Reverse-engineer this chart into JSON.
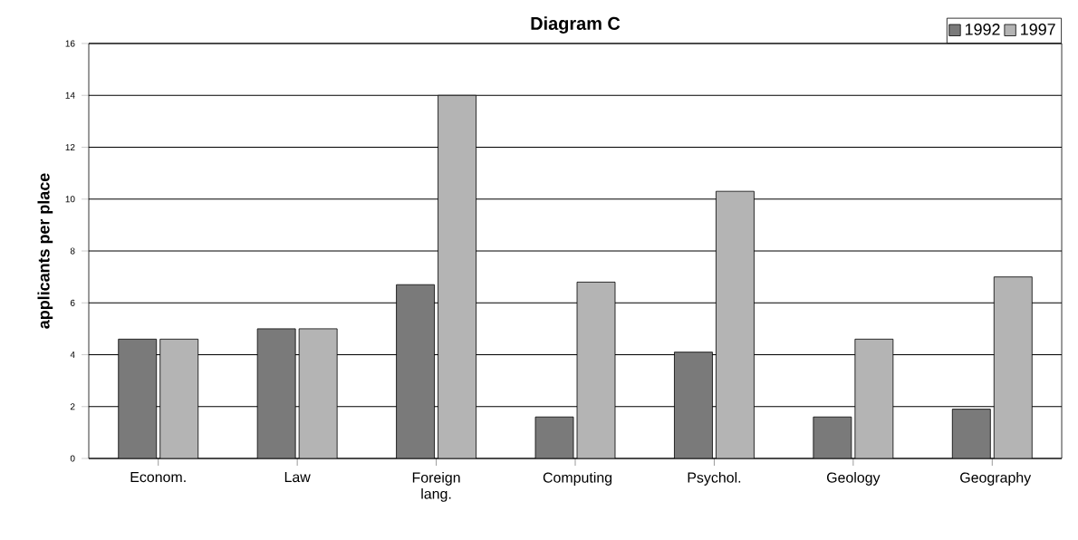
{
  "chart_data": {
    "type": "bar",
    "title": "Diagram C",
    "ylabel": "applicants per place",
    "categories": [
      "Econom.",
      "Law",
      "Foreign lang.",
      "Computing",
      "Psychol.",
      "Geology",
      "Geography"
    ],
    "series": [
      {
        "name": "1992",
        "color": "#7a7a7a",
        "values": [
          4.6,
          5.0,
          6.7,
          1.6,
          4.1,
          1.6,
          1.9
        ]
      },
      {
        "name": "1997",
        "color": "#b4b4b4",
        "values": [
          4.6,
          5.0,
          14,
          6.8,
          10.3,
          4.6,
          7.0
        ]
      }
    ],
    "ylim": [
      0,
      16
    ],
    "yticks": [
      0,
      2,
      4,
      6,
      8,
      10,
      12,
      14,
      16
    ],
    "grid": "y",
    "legend": "top right"
  }
}
